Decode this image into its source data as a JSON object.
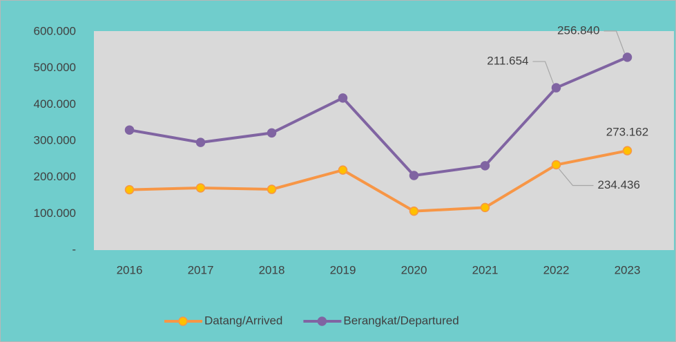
{
  "chart_data": {
    "type": "line",
    "stacked": true,
    "categories": [
      "2016",
      "2017",
      "2018",
      "2019",
      "2020",
      "2021",
      "2022",
      "2023"
    ],
    "series": [
      {
        "name": "Datang/Arrived",
        "color": "#f79646",
        "marker_color": "#ffc000",
        "values": [
          166000,
          171000,
          167000,
          220000,
          107000,
          117000,
          234436,
          273162
        ],
        "value_labels": [
          null,
          null,
          null,
          null,
          null,
          null,
          "234.436",
          "273.162"
        ]
      },
      {
        "name": "Berangkat/Departured",
        "color": "#8064a2",
        "marker_color": "#8064a2",
        "values": [
          164000,
          125000,
          155000,
          198000,
          98000,
          115000,
          211654,
          256840
        ],
        "value_labels": [
          null,
          null,
          null,
          null,
          null,
          null,
          "211.654",
          "256.840"
        ]
      }
    ],
    "ylim": [
      0,
      600000
    ],
    "yticks": [
      {
        "value": 0,
        "label": "-"
      },
      {
        "value": 100000,
        "label": "100.000"
      },
      {
        "value": 200000,
        "label": "200.000"
      },
      {
        "value": 300000,
        "label": "300.000"
      },
      {
        "value": 400000,
        "label": "400.000"
      },
      {
        "value": 500000,
        "label": "500.000"
      },
      {
        "value": 600000,
        "label": "600.000"
      }
    ],
    "grid": false,
    "legend": "bottom"
  }
}
